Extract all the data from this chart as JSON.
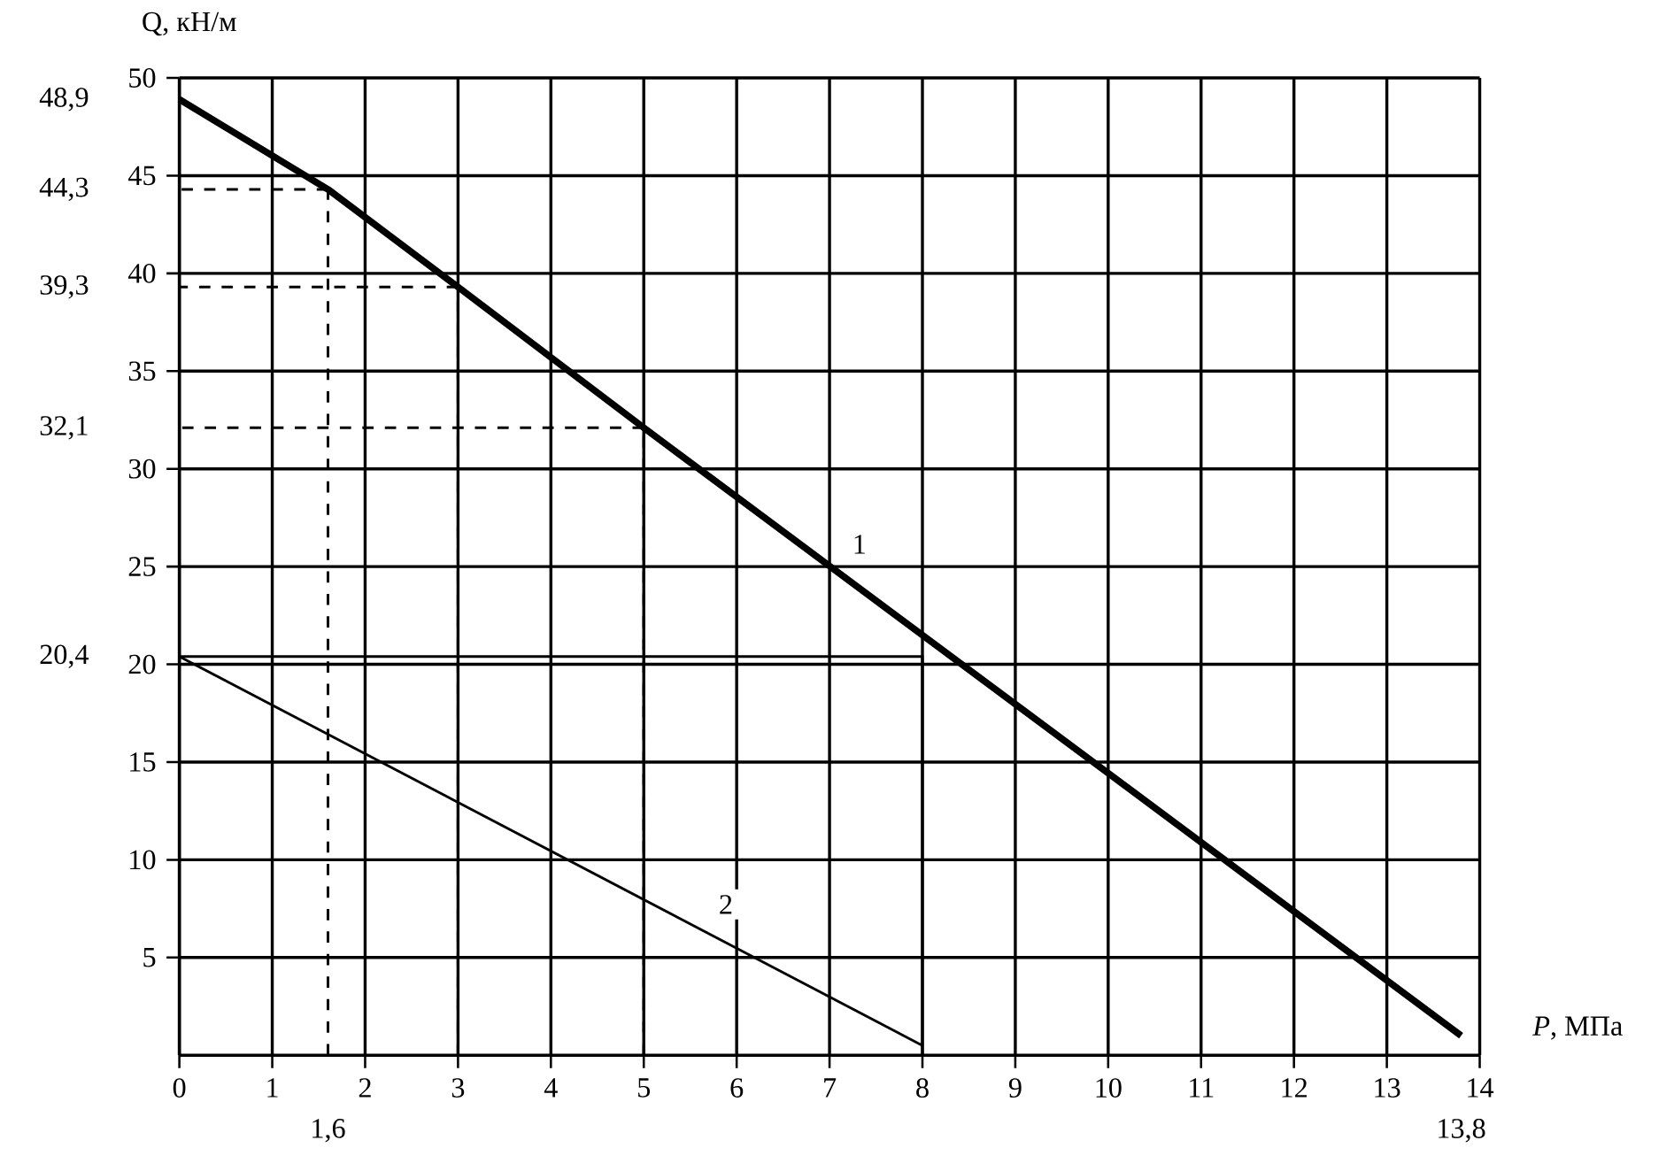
{
  "chart_data": {
    "type": "line",
    "xlabel": "*P*, МПа",
    "ylabel": "Q, кН/м",
    "xlim": [
      0,
      14
    ],
    "ylim": [
      0,
      50
    ],
    "xticks": [
      0,
      1,
      2,
      3,
      4,
      5,
      6,
      7,
      8,
      9,
      10,
      11,
      12,
      13,
      14
    ],
    "yticks": [
      5,
      10,
      15,
      20,
      25,
      30,
      35,
      40,
      45,
      50
    ],
    "y2lim": [
      0,
      50
    ],
    "y2ticks": [
      {
        "value": 48.9,
        "label": "48,9"
      },
      {
        "value": 44.3,
        "label": "44,3"
      },
      {
        "value": 39.3,
        "label": "39,3"
      },
      {
        "value": 32.1,
        "label": "32,1"
      },
      {
        "value": 20.4,
        "label": "20,4"
      }
    ],
    "x2lim": [
      0,
      14
    ],
    "x2ticks": [
      {
        "value": 1.6,
        "label": "1,6"
      },
      {
        "value": 13.8,
        "label": "13,8"
      }
    ],
    "grid": true,
    "marker": "none",
    "series": [
      {
        "name": "1",
        "color": "#000000",
        "x": [
          0,
          1.6,
          3,
          5,
          13.8
        ],
        "values": [
          48.9,
          44.3,
          39.3,
          32.1,
          1
        ]
      },
      {
        "name": "2",
        "color": "#000000",
        "x": [
          0,
          8
        ],
        "values": [
          20.4,
          0.5
        ]
      },
      {
        "color": "#000000",
        "x": [
          0,
          8,
          8
        ],
        "values": [
          20.4,
          20.4,
          0
        ]
      },
      {
        "color": "#000000",
        "line_style": "dashed",
        "x": [
          1.6,
          1.6
        ],
        "values": [
          0,
          44.3
        ]
      },
      {
        "color": "#000000",
        "line_style": "dashed",
        "x": [
          1.6,
          0
        ],
        "values": [
          44.3,
          44.3
        ]
      },
      {
        "color": "#000000",
        "line_style": "dashed",
        "x": [
          3,
          3
        ],
        "values": [
          0,
          39.3
        ]
      },
      {
        "color": "#000000",
        "line_style": "dashed",
        "x": [
          3,
          0
        ],
        "values": [
          39.3,
          39.3
        ]
      },
      {
        "color": "#000000",
        "line_style": "dashed",
        "x": [
          5,
          5
        ],
        "values": [
          0,
          32.1
        ]
      },
      {
        "color": "#000000",
        "line_style": "dashed",
        "x": [
          5,
          0
        ],
        "values": [
          32.1,
          32.1
        ]
      }
    ]
  }
}
